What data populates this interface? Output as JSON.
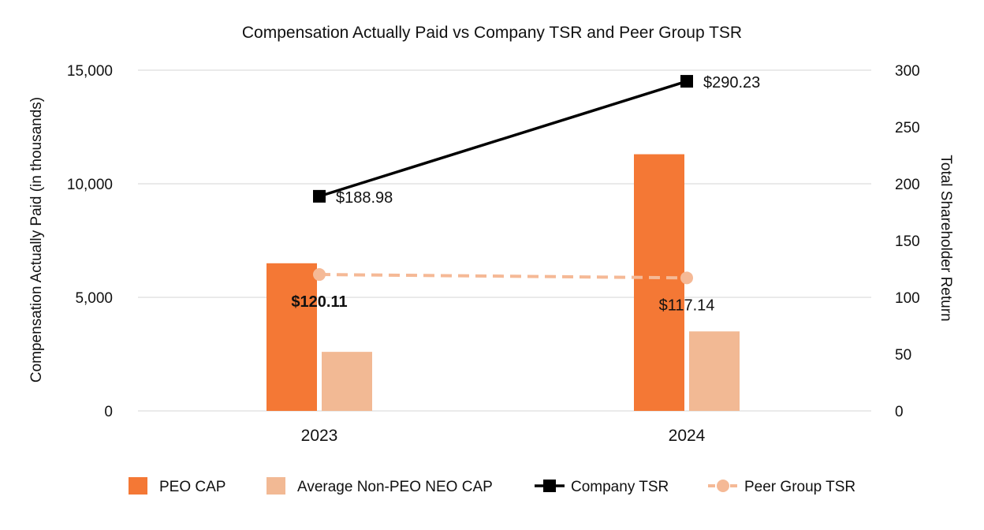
{
  "chart_data": {
    "type": "bar",
    "title": "Compensation Actually Paid vs Company TSR and Peer Group TSR",
    "categories": [
      "2023",
      "2024"
    ],
    "y_left": {
      "label": "Compensation Actually Paid (in thousands)",
      "range": [
        0,
        15000
      ],
      "ticks": [
        0,
        5000,
        10000,
        15000
      ],
      "tick_labels": [
        "0",
        "5,000",
        "10,000",
        "15,000"
      ]
    },
    "y_right": {
      "label": "Total Shareholder Return",
      "range": [
        0,
        300
      ],
      "ticks": [
        0,
        50,
        100,
        150,
        200,
        250,
        300
      ],
      "tick_labels": [
        "0",
        "50",
        "100",
        "150",
        "200",
        "250",
        "300"
      ]
    },
    "grid": true,
    "legend_position": "bottom",
    "series": [
      {
        "name": "PEO CAP",
        "type": "bar",
        "axis": "left",
        "color": "#f47835",
        "values": [
          6500,
          11300
        ]
      },
      {
        "name": "Average Non-PEO NEO CAP",
        "type": "bar",
        "axis": "left",
        "color": "#f2b994",
        "values": [
          2600,
          3500
        ]
      },
      {
        "name": "Company TSR",
        "type": "line",
        "axis": "right",
        "color": "#000000",
        "marker": "square",
        "values": [
          188.98,
          290.23
        ],
        "labels": [
          "$188.98",
          "$290.23"
        ]
      },
      {
        "name": "Peer Group TSR",
        "type": "line",
        "axis": "right",
        "color": "#f5b996",
        "marker": "circle",
        "dashed": true,
        "values": [
          120.11,
          117.14
        ],
        "labels": [
          "$120.11",
          "$117.14"
        ]
      }
    ]
  }
}
